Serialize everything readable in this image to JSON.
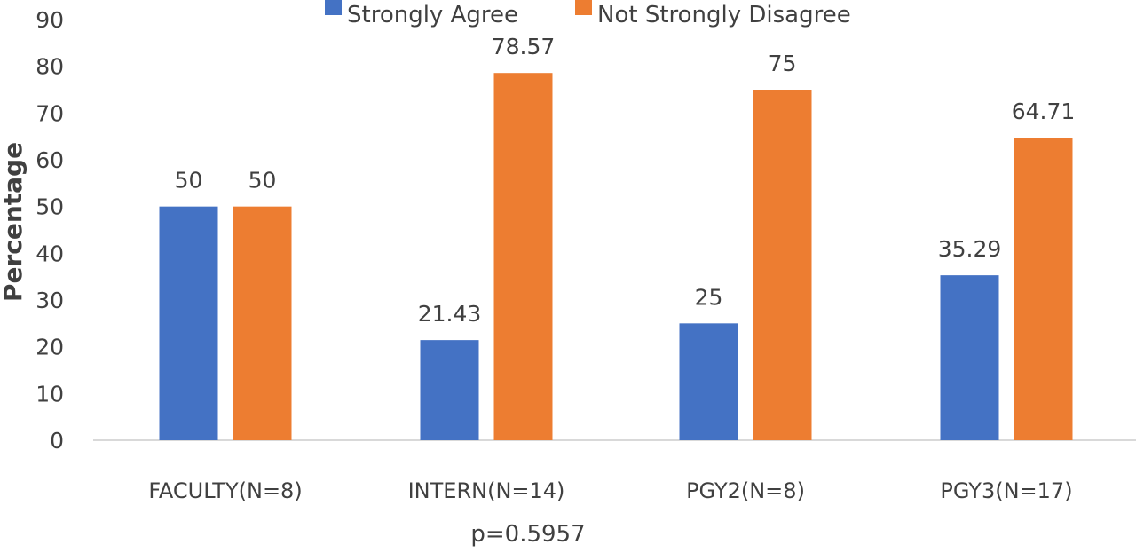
{
  "chart_data": {
    "type": "bar",
    "ylabel": "Percentage",
    "xlabel": "",
    "note": "p=0.5957",
    "ylim": [
      0,
      90
    ],
    "yticks": [
      0,
      10,
      20,
      30,
      40,
      50,
      60,
      70,
      80,
      90
    ],
    "grid": false,
    "legend": "top-center",
    "categories": [
      "FACULTY(N=8)",
      "INTERN(N=14)",
      "PGY2(N=8)",
      "PGY3(N=17)"
    ],
    "series": [
      {
        "name": "Strongly Agree",
        "color": "#4472C4",
        "values": [
          50,
          21.43,
          25,
          35.29
        ],
        "labels": [
          "50",
          "21.43",
          "25",
          "35.29"
        ]
      },
      {
        "name": "Not Strongly Disagree",
        "color": "#ED7D31",
        "values": [
          50,
          78.57,
          75,
          64.71
        ],
        "labels": [
          "50",
          "78.57",
          "75",
          "64.71"
        ]
      }
    ]
  }
}
